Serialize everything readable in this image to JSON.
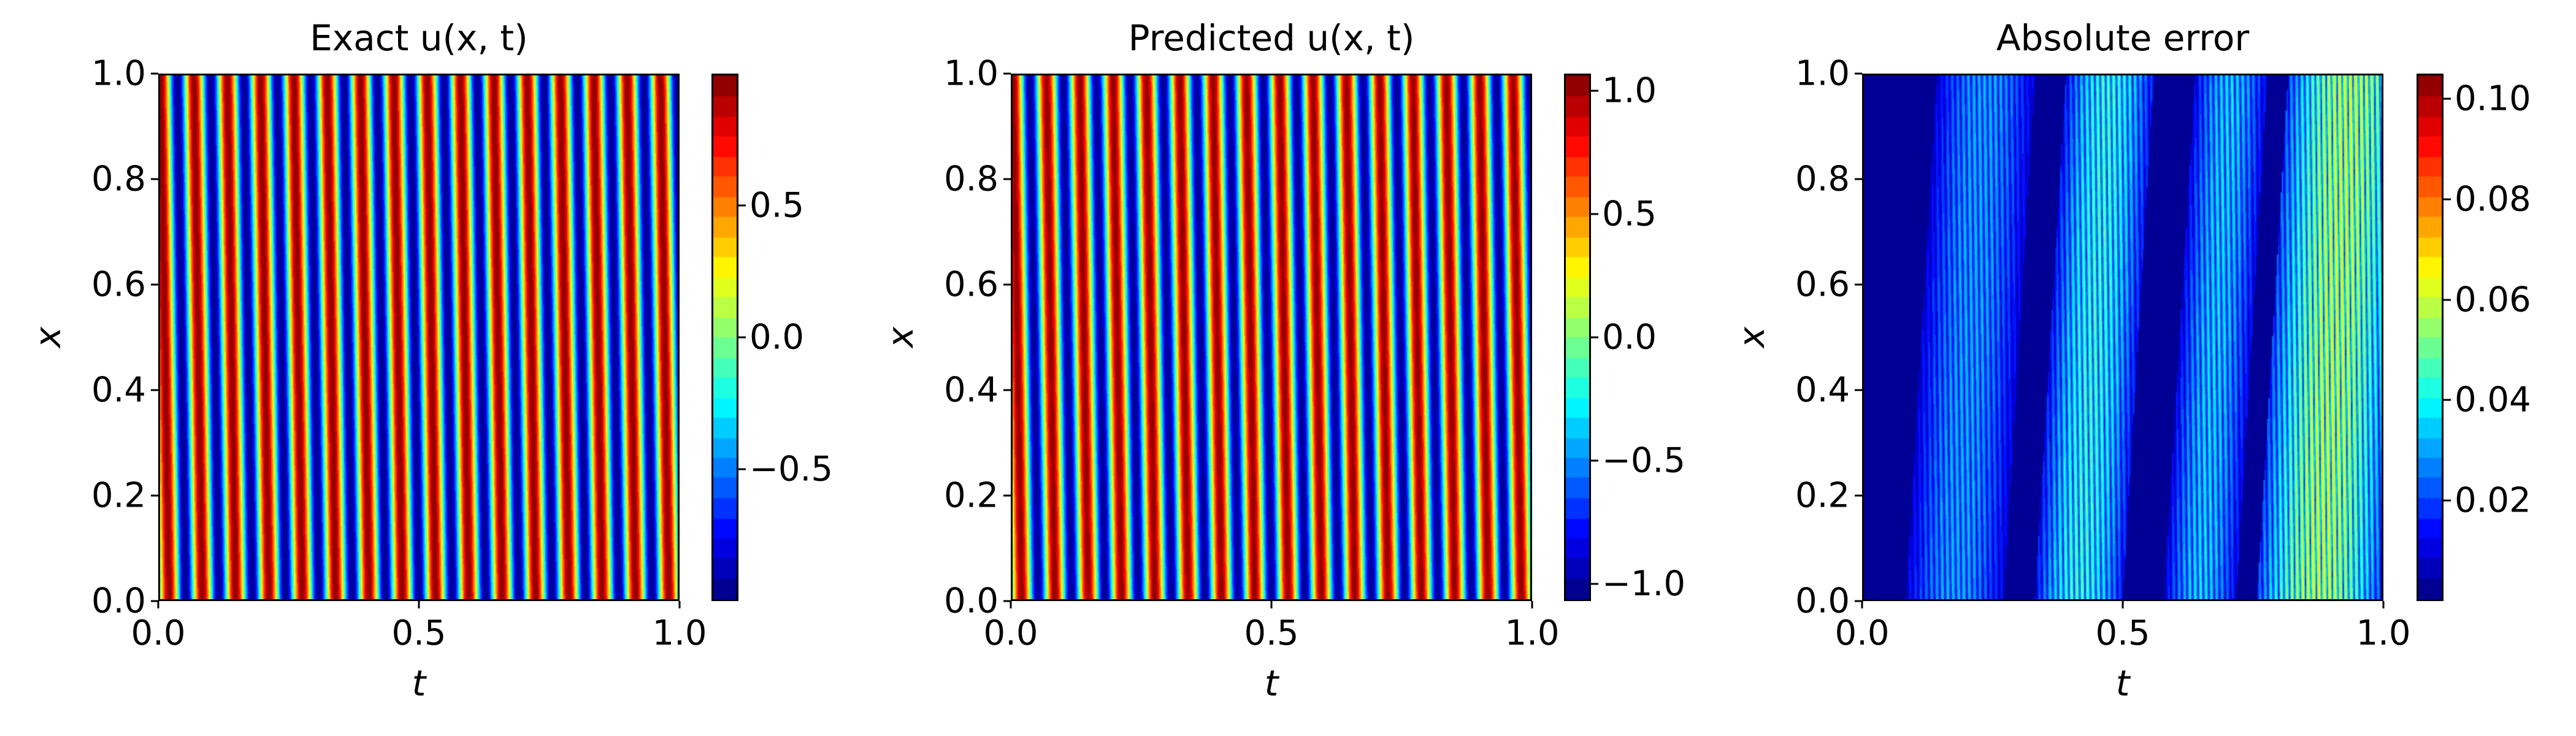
{
  "figure": {
    "panels": [
      {
        "id": "exact",
        "title": "Exact u(x, t)",
        "xlabel": "t",
        "ylabel": "x",
        "xticks": [
          "0.0",
          "0.5",
          "1.0"
        ],
        "yticks": [
          "0.0",
          "0.2",
          "0.4",
          "0.6",
          "0.8",
          "1.0"
        ],
        "colorbar": {
          "ticks": [
            "0.5",
            "0.0",
            "−0.5"
          ],
          "tick_values": [
            0.5,
            0.0,
            -0.5
          ],
          "vmin": -1.0,
          "vmax": 1.0
        }
      },
      {
        "id": "predicted",
        "title": "Predicted u(x, t)",
        "xlabel": "t",
        "ylabel": "x",
        "xticks": [
          "0.0",
          "0.5",
          "1.0"
        ],
        "yticks": [
          "0.0",
          "0.2",
          "0.4",
          "0.6",
          "0.8",
          "1.0"
        ],
        "colorbar": {
          "ticks": [
            "1.0",
            "0.5",
            "0.0",
            "−0.5",
            "−1.0"
          ],
          "tick_values": [
            1.0,
            0.5,
            0.0,
            -0.5,
            -1.0
          ],
          "vmin": -1.07,
          "vmax": 1.07
        }
      },
      {
        "id": "abs_error",
        "title": "Absolute error",
        "xlabel": "t",
        "ylabel": "x",
        "xticks": [
          "0.0",
          "0.5",
          "1.0"
        ],
        "yticks": [
          "0.0",
          "0.2",
          "0.4",
          "0.6",
          "0.8",
          "1.0"
        ],
        "colorbar": {
          "ticks": [
            "0.10",
            "0.08",
            "0.06",
            "0.04",
            "0.02"
          ],
          "tick_values": [
            0.1,
            0.08,
            0.06,
            0.04,
            0.02
          ],
          "vmin": 0.0,
          "vmax": 0.105
        }
      }
    ]
  },
  "chart_data": [
    {
      "type": "heatmap",
      "title": "Exact u(x, t)",
      "xlabel": "t",
      "ylabel": "x",
      "xlim": [
        0.0,
        1.0
      ],
      "ylim": [
        0.0,
        1.0
      ],
      "xticks": [
        0.0,
        0.5,
        1.0
      ],
      "yticks": [
        0.0,
        0.2,
        0.4,
        0.6,
        0.8,
        1.0
      ],
      "colormap": "jet",
      "colorbar_range": [
        -1.0,
        1.0
      ],
      "colorbar_ticks": [
        -0.5,
        0.0,
        0.5
      ],
      "pattern": "traveling sine wave: u = sin(2*pi*(f*t - k*x)), ~15.5 periods over t in [0,1], stripes slightly tilted",
      "periods_in_t": 15.5,
      "phase_shift_over_x": 0.25
    },
    {
      "type": "heatmap",
      "title": "Predicted u(x, t)",
      "xlabel": "t",
      "ylabel": "x",
      "xlim": [
        0.0,
        1.0
      ],
      "ylim": [
        0.0,
        1.0
      ],
      "xticks": [
        0.0,
        0.5,
        1.0
      ],
      "yticks": [
        0.0,
        0.2,
        0.4,
        0.6,
        0.8,
        1.0
      ],
      "colormap": "jet",
      "colorbar_range": [
        -1.07,
        1.07
      ],
      "colorbar_ticks": [
        -1.0,
        -0.5,
        0.0,
        0.5,
        1.0
      ],
      "pattern": "near-identical to exact solution",
      "periods_in_t": 15.5,
      "phase_shift_over_x": 0.25
    },
    {
      "type": "heatmap",
      "title": "Absolute error",
      "xlabel": "t",
      "ylabel": "x",
      "xlim": [
        0.0,
        1.0
      ],
      "ylim": [
        0.0,
        1.0
      ],
      "xticks": [
        0.0,
        0.5,
        1.0
      ],
      "yticks": [
        0.0,
        0.2,
        0.4,
        0.6,
        0.8,
        1.0
      ],
      "colormap": "jet",
      "colorbar_range": [
        0.0,
        0.105
      ],
      "colorbar_ticks": [
        0.02,
        0.04,
        0.06,
        0.08,
        0.1
      ],
      "pattern": "thin tilted stripes grouped in bands; low error near t=0, t~0.3, t~0.55-0.6, t~0.75; higher bands around t~0.1-0.25, 0.35-0.5, 0.6-0.72, and highest 0.78-1.0",
      "error_bands": [
        {
          "t_start": 0.08,
          "t_end": 0.27,
          "peak": 0.035
        },
        {
          "t_start": 0.33,
          "t_end": 0.5,
          "peak": 0.05
        },
        {
          "t_start": 0.58,
          "t_end": 0.72,
          "peak": 0.04
        },
        {
          "t_start": 0.76,
          "t_end": 1.0,
          "peak": 0.068
        }
      ],
      "max_error": 0.105
    }
  ]
}
